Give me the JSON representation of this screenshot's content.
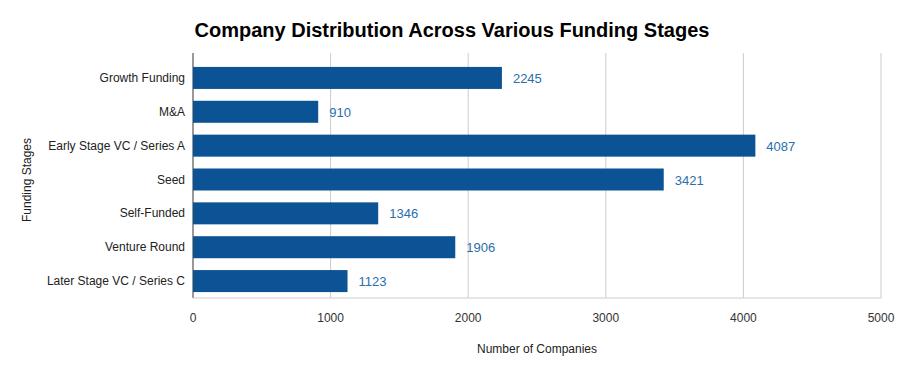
{
  "chart_data": {
    "type": "bar",
    "orientation": "horizontal",
    "title": "Company Distribution Across Various Funding Stages",
    "x_label": "Number of Companies",
    "y_label": "Funding Stages",
    "categories": [
      "Growth Funding",
      "M&A",
      "Early Stage VC / Series A",
      "Seed",
      "Self-Funded",
      "Venture Round",
      "Later Stage VC / Series C"
    ],
    "values": [
      2245,
      910,
      4087,
      3421,
      1346,
      1906,
      1123
    ],
    "color": "#0b5394",
    "xlim": [
      0,
      5000
    ],
    "xticks": [
      0,
      1000,
      2000,
      3000,
      4000,
      5000
    ],
    "grid": true,
    "data_labels": true
  }
}
